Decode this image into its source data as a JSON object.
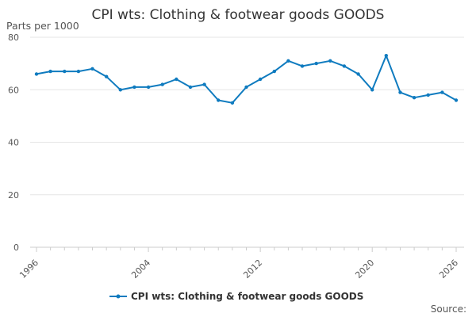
{
  "chart_data": {
    "type": "line",
    "title": "CPI wts: Clothing & footwear goods GOODS",
    "ylabel": "Parts per 1000",
    "xlabel": "",
    "ylim": [
      0,
      80
    ],
    "xlim": [
      1996,
      2026
    ],
    "yticks": [
      0,
      20,
      40,
      60,
      80
    ],
    "xticks": [
      1996,
      2004,
      2012,
      2020,
      2026
    ],
    "grid": true,
    "legend_position": "bottom",
    "series": [
      {
        "name": "CPI wts: Clothing & footwear goods GOODS",
        "color": "#0f7bbf",
        "x": [
          1996,
          1997,
          1998,
          1999,
          2000,
          2001,
          2002,
          2003,
          2004,
          2005,
          2006,
          2007,
          2008,
          2009,
          2010,
          2011,
          2012,
          2013,
          2014,
          2015,
          2016,
          2017,
          2018,
          2019,
          2020,
          2021,
          2022,
          2023,
          2024,
          2025,
          2026
        ],
        "values": [
          66,
          67,
          67,
          67,
          68,
          65,
          60,
          61,
          61,
          62,
          64,
          61,
          62,
          56,
          55,
          61,
          64,
          67,
          71,
          69,
          70,
          71,
          69,
          66,
          60,
          73,
          59,
          57,
          58,
          59,
          56
        ]
      }
    ],
    "source": "Source:"
  }
}
